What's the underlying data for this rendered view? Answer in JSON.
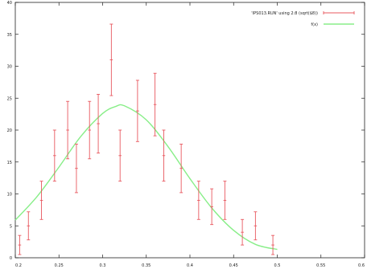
{
  "chart_data": {
    "type": "scatter",
    "title": "",
    "xlabel": "",
    "ylabel": "",
    "xlim": [
      0.2,
      0.6
    ],
    "ylim": [
      0,
      40
    ],
    "grid": false,
    "legend_position": "top-right",
    "x_ticks": [
      "0.2",
      "0.25",
      "0.3",
      "0.35",
      "0.4",
      "0.45",
      "0.5",
      "0.55",
      "0.6"
    ],
    "y_ticks": [
      "0",
      "5",
      "10",
      "15",
      "20",
      "25",
      "30",
      "35",
      "40"
    ],
    "series": [
      {
        "name": "'IPS013.RUN' using 2:8 (sqrt($8))",
        "kind": "errorbars",
        "color": "#e8585f",
        "points": [
          {
            "x": 0.205,
            "y": 2.0,
            "err": 1.5
          },
          {
            "x": 0.215,
            "y": 5.0,
            "err": 2.2
          },
          {
            "x": 0.23,
            "y": 9.0,
            "err": 3.0
          },
          {
            "x": 0.245,
            "y": 16.0,
            "err": 4.0
          },
          {
            "x": 0.26,
            "y": 20.0,
            "err": 4.5
          },
          {
            "x": 0.27,
            "y": 14.0,
            "err": 3.8
          },
          {
            "x": 0.285,
            "y": 20.0,
            "err": 4.5
          },
          {
            "x": 0.295,
            "y": 21.0,
            "err": 4.6
          },
          {
            "x": 0.31,
            "y": 31.0,
            "err": 5.6
          },
          {
            "x": 0.32,
            "y": 16.0,
            "err": 4.0
          },
          {
            "x": 0.34,
            "y": 23.0,
            "err": 4.8
          },
          {
            "x": 0.36,
            "y": 24.0,
            "err": 4.9
          },
          {
            "x": 0.37,
            "y": 16.0,
            "err": 4.0
          },
          {
            "x": 0.39,
            "y": 14.0,
            "err": 3.8
          },
          {
            "x": 0.41,
            "y": 9.0,
            "err": 3.0
          },
          {
            "x": 0.425,
            "y": 8.0,
            "err": 2.8
          },
          {
            "x": 0.44,
            "y": 9.0,
            "err": 3.0
          },
          {
            "x": 0.46,
            "y": 4.0,
            "err": 2.0
          },
          {
            "x": 0.475,
            "y": 5.0,
            "err": 2.2
          },
          {
            "x": 0.495,
            "y": 2.0,
            "err": 1.5
          }
        ]
      },
      {
        "name": "f(x)",
        "kind": "line",
        "color": "#88ee88",
        "points": [
          {
            "x": 0.2,
            "y": 5.9
          },
          {
            "x": 0.225,
            "y": 9.6
          },
          {
            "x": 0.25,
            "y": 14.2
          },
          {
            "x": 0.275,
            "y": 19.0
          },
          {
            "x": 0.3,
            "y": 22.6
          },
          {
            "x": 0.315,
            "y": 23.7
          },
          {
            "x": 0.325,
            "y": 23.8
          },
          {
            "x": 0.35,
            "y": 21.6
          },
          {
            "x": 0.375,
            "y": 17.4
          },
          {
            "x": 0.4,
            "y": 12.4
          },
          {
            "x": 0.425,
            "y": 7.8
          },
          {
            "x": 0.45,
            "y": 4.3
          },
          {
            "x": 0.475,
            "y": 2.1
          },
          {
            "x": 0.5,
            "y": 1.3
          }
        ]
      }
    ]
  }
}
